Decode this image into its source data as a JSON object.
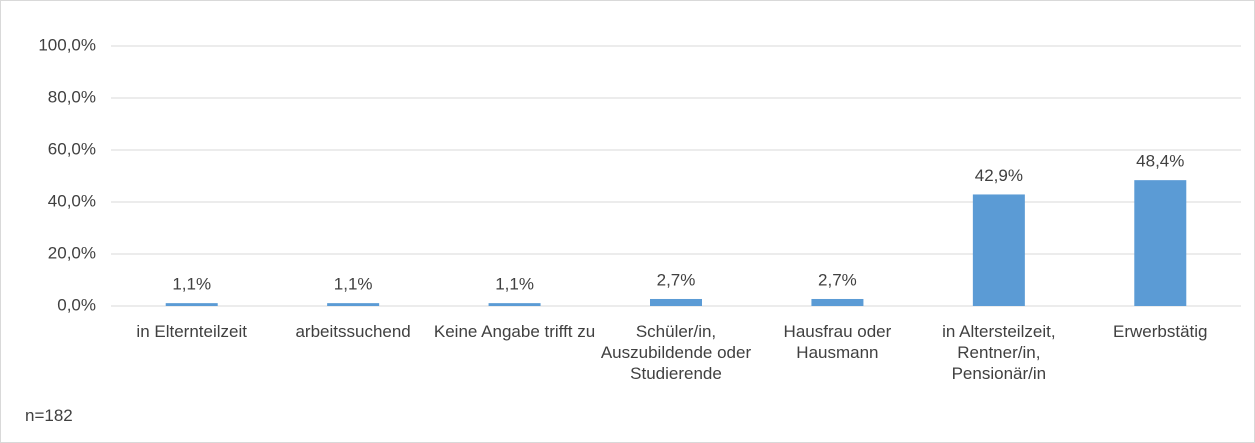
{
  "chart_data": {
    "type": "bar",
    "categories": [
      "in Elternteilzeit",
      "arbeitssuchend",
      "Keine Angabe trifft zu",
      "Schüler/in, Auszubildende oder Studierende",
      "Hausfrau oder Hausmann",
      "in Altersteilzeit, Rentner/in, Pensionär/in",
      "Erwerbstätig"
    ],
    "values": [
      1.1,
      1.1,
      1.1,
      2.7,
      2.7,
      42.9,
      48.4
    ],
    "value_labels": [
      "1,1%",
      "1,1%",
      "1,1%",
      "2,7%",
      "2,7%",
      "42,9%",
      "48,4%"
    ],
    "color": "#5b9bd5",
    "ylim": [
      0,
      100
    ],
    "yticks": [
      {
        "value": 0,
        "label": "0,0%"
      },
      {
        "value": 20,
        "label": "20,0%"
      },
      {
        "value": 40,
        "label": "40,0%"
      },
      {
        "value": 60,
        "label": "60,0%"
      },
      {
        "value": 80,
        "label": "80,0%"
      },
      {
        "value": 100,
        "label": "100,0%"
      }
    ],
    "grid": true,
    "annotation": "n=182"
  }
}
